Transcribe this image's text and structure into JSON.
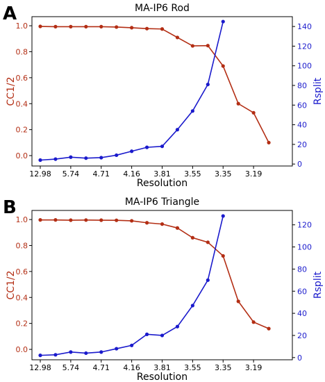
{
  "chart_data": [
    {
      "panel_label": "A",
      "type": "line",
      "title": "MA-IP6 Rod",
      "xlabel": "Resolution",
      "ylabel_left": "CC1/2",
      "ylabel_right": "Rsplit",
      "x_tick_labels": [
        "12.98",
        "5.74",
        "4.71",
        "4.16",
        "3.81",
        "3.55",
        "3.35",
        "3.19"
      ],
      "n_points": 17,
      "ylim_left": [
        -0.08,
        1.07
      ],
      "yticks_left": [
        "0.0",
        "0.2",
        "0.4",
        "0.6",
        "0.8",
        "1.0"
      ],
      "ylim_right": [
        -2,
        150
      ],
      "yticks_right": [
        "0",
        "20",
        "40",
        "60",
        "80",
        "100",
        "120",
        "140"
      ],
      "grid": false,
      "series": [
        {
          "name": "CC1/2",
          "axis": "left",
          "color": "#b32e14",
          "values": [
            0.995,
            0.993,
            0.993,
            0.993,
            0.993,
            0.99,
            0.985,
            0.978,
            0.975,
            0.91,
            0.845,
            0.847,
            0.69,
            0.4,
            0.33,
            0.1
          ]
        },
        {
          "name": "Rsplit",
          "axis": "right",
          "color": "#1a1acc",
          "values": [
            4,
            5,
            7,
            6,
            6.5,
            9,
            13,
            17,
            18,
            35,
            54,
            81,
            145
          ]
        }
      ]
    },
    {
      "panel_label": "B",
      "type": "line",
      "title": "MA-IP6 Triangle",
      "xlabel": "Resolution",
      "ylabel_left": "CC1/2",
      "ylabel_right": "Rsplit",
      "x_tick_labels": [
        "12.98",
        "5.74",
        "4.71",
        "4.16",
        "3.81",
        "3.55",
        "3.35",
        "3.19"
      ],
      "n_points": 17,
      "ylim_left": [
        -0.08,
        1.07
      ],
      "yticks_left": [
        "0.0",
        "0.2",
        "0.4",
        "0.6",
        "0.8",
        "1.0"
      ],
      "ylim_right": [
        -2,
        133
      ],
      "yticks_right": [
        "0",
        "20",
        "40",
        "60",
        "80",
        "100",
        "120"
      ],
      "grid": false,
      "series": [
        {
          "name": "CC1/2",
          "axis": "left",
          "color": "#b32e14",
          "values": [
            0.997,
            0.997,
            0.995,
            0.996,
            0.995,
            0.994,
            0.99,
            0.975,
            0.965,
            0.935,
            0.86,
            0.825,
            0.72,
            0.37,
            0.21,
            0.16
          ]
        },
        {
          "name": "Rsplit",
          "axis": "right",
          "color": "#1a1acc",
          "values": [
            2,
            2.5,
            5,
            4,
            5,
            8,
            11,
            21,
            20,
            28,
            47,
            70,
            128
          ]
        }
      ]
    }
  ]
}
